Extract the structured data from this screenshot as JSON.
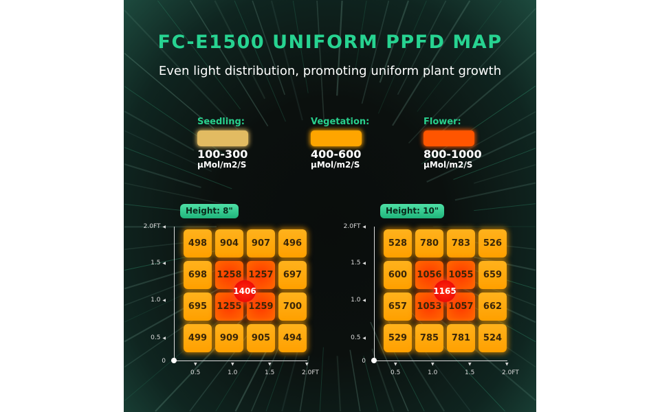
{
  "title": "FC-E1500 UNIFORM PPFD MAP",
  "subtitle": "Even light distribution, promoting uniform plant growth",
  "legend": [
    {
      "label": "Seedling:",
      "range": "100-300",
      "unit": "µMol/m2/S",
      "color": "#e2bb62"
    },
    {
      "label": "Vegetation:",
      "range": "400-600",
      "unit": "µMol/m2/S",
      "color": "#ffa500"
    },
    {
      "label": "Flower:",
      "range": "800-1000",
      "unit": "µMol/m2/S",
      "color": "#ff5500"
    }
  ],
  "chart_data": [
    {
      "type": "heatmap",
      "title": "Height: 8\"",
      "x_ticks": [
        "0.5",
        "1.0",
        "1.5",
        "2.0FT"
      ],
      "y_ticks": [
        "2.0FT",
        "1.5",
        "1.0",
        "0.5",
        "0"
      ],
      "rows": [
        [
          498,
          904,
          907,
          496
        ],
        [
          698,
          1258,
          1257,
          697
        ],
        [
          695,
          1255,
          1259,
          700
        ],
        [
          499,
          909,
          905,
          494
        ]
      ],
      "center": 1406
    },
    {
      "type": "heatmap",
      "title": "Height: 10\"",
      "x_ticks": [
        "0.5",
        "1.0",
        "1.5",
        "2.0FT"
      ],
      "y_ticks": [
        "2.0FT",
        "1.5",
        "1.0",
        "0.5",
        "0"
      ],
      "rows": [
        [
          528,
          780,
          783,
          526
        ],
        [
          600,
          1056,
          1055,
          659
        ],
        [
          657,
          1053,
          1057,
          662
        ],
        [
          529,
          785,
          781,
          524
        ]
      ],
      "center": 1165
    }
  ]
}
